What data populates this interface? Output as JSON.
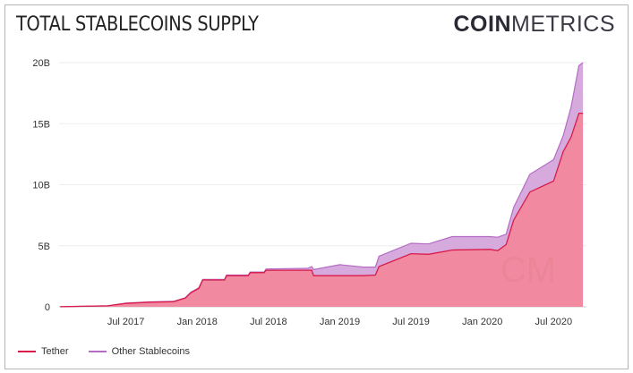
{
  "title": "TOTAL STABLECOINS SUPPLY",
  "logo": {
    "bold": "COIN",
    "light": "METRICS",
    "watermark": "CM"
  },
  "chart_data": {
    "type": "area",
    "stacked": true,
    "title": "TOTAL STABLECOINS SUPPLY",
    "xlabel": "",
    "ylabel": "",
    "ylim": [
      0,
      20
    ],
    "yticks": [
      {
        "v": 0,
        "label": "0"
      },
      {
        "v": 5,
        "label": "5B"
      },
      {
        "v": 10,
        "label": "10B"
      },
      {
        "v": 15,
        "label": "15B"
      },
      {
        "v": 20,
        "label": "20B"
      }
    ],
    "xticks": [
      {
        "date": "2017-07-01",
        "label": "Jul 2017"
      },
      {
        "date": "2018-01-01",
        "label": "Jan 2018"
      },
      {
        "date": "2018-07-01",
        "label": "Jul 2018"
      },
      {
        "date": "2019-01-01",
        "label": "Jan 2019"
      },
      {
        "date": "2019-07-01",
        "label": "Jul 2019"
      },
      {
        "date": "2020-01-01",
        "label": "Jan 2020"
      },
      {
        "date": "2020-07-01",
        "label": "Jul 2020"
      }
    ],
    "xlim": [
      "2017-01-01",
      "2020-10-01"
    ],
    "grid": true,
    "legend_position": "bottom-left",
    "units": "billions USD",
    "x": [
      "2017-01-15",
      "2017-05-15",
      "2017-07-01",
      "2017-09-01",
      "2017-11-01",
      "2017-12-01",
      "2017-12-15",
      "2018-01-05",
      "2018-01-15",
      "2018-03-10",
      "2018-03-15",
      "2018-05-10",
      "2018-05-15",
      "2018-06-20",
      "2018-06-25",
      "2018-10-10",
      "2018-10-20",
      "2018-10-25",
      "2019-01-01",
      "2019-03-01",
      "2019-04-01",
      "2019-04-10",
      "2019-07-01",
      "2019-08-15",
      "2019-10-15",
      "2020-01-20",
      "2020-02-10",
      "2020-03-01",
      "2020-03-20",
      "2020-05-01",
      "2020-07-01",
      "2020-07-25",
      "2020-08-15",
      "2020-09-05",
      "2020-09-15"
    ],
    "series": [
      {
        "name": "Tether",
        "color": "#d81b4a",
        "fill": "#f18aa0",
        "values": [
          0.01,
          0.08,
          0.28,
          0.38,
          0.42,
          0.72,
          1.15,
          1.5,
          2.2,
          2.2,
          2.55,
          2.55,
          2.8,
          2.8,
          3.0,
          3.0,
          3.0,
          2.55,
          2.55,
          2.55,
          2.6,
          3.3,
          4.35,
          4.3,
          4.65,
          4.7,
          4.6,
          5.1,
          7.1,
          9.4,
          10.3,
          12.7,
          13.9,
          15.85,
          15.85
        ]
      },
      {
        "name": "Other Stablecoins",
        "color": "#b46cc4",
        "fill": "#d7aade",
        "values": [
          0,
          0.01,
          0.02,
          0.02,
          0.03,
          0.03,
          0.05,
          0.05,
          0.05,
          0.05,
          0.05,
          0.05,
          0.05,
          0.06,
          0.1,
          0.15,
          0.3,
          0.5,
          0.9,
          0.7,
          0.65,
          0.85,
          0.85,
          0.85,
          1.1,
          1.05,
          1.1,
          0.85,
          1.05,
          1.45,
          1.75,
          1.3,
          2.45,
          3.9,
          4.15
        ]
      }
    ]
  }
}
